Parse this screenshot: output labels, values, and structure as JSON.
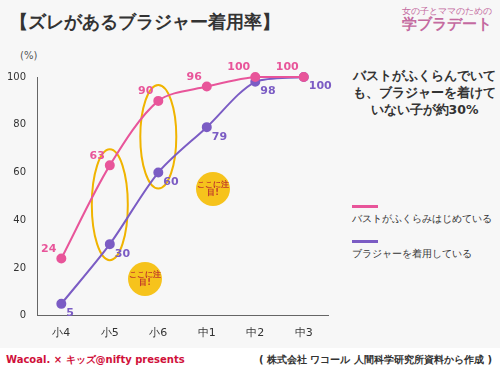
{
  "chart_data": {
    "type": "line",
    "title": "【ズレがあるブラジャー着用率】",
    "ylabel": "(%)",
    "categories": [
      "小4",
      "小5",
      "小6",
      "中1",
      "中2",
      "中3"
    ],
    "series": [
      {
        "name": "バストがふくらみはじめている",
        "color": "#e8559a",
        "marker": "circle",
        "values": [
          24,
          63,
          90,
          96,
          100,
          100
        ]
      },
      {
        "name": "ブラジャーを着用している",
        "color": "#7b5cc4",
        "marker": "circle",
        "values": [
          5,
          30,
          60,
          79,
          98,
          100
        ]
      }
    ],
    "ylim": [
      0,
      100
    ],
    "yticks": [
      0,
      20,
      40,
      60,
      80,
      100
    ],
    "grid": false,
    "legend": "right",
    "data_labels": true,
    "annotations": [
      "バストがふくらんでいても、ブラジャーを着けていない子が約30%"
    ],
    "callouts": [
      "ここに注目!",
      "ここに注目!"
    ]
  },
  "header": {
    "logo": [
      "女の子とママのための",
      "学ブラデート"
    ]
  },
  "footer": {
    "left": "Wacoal. × キッズ@nifty presents",
    "right": "( 株式会社 ワコール 人間科学研究所資料から作成 )"
  }
}
